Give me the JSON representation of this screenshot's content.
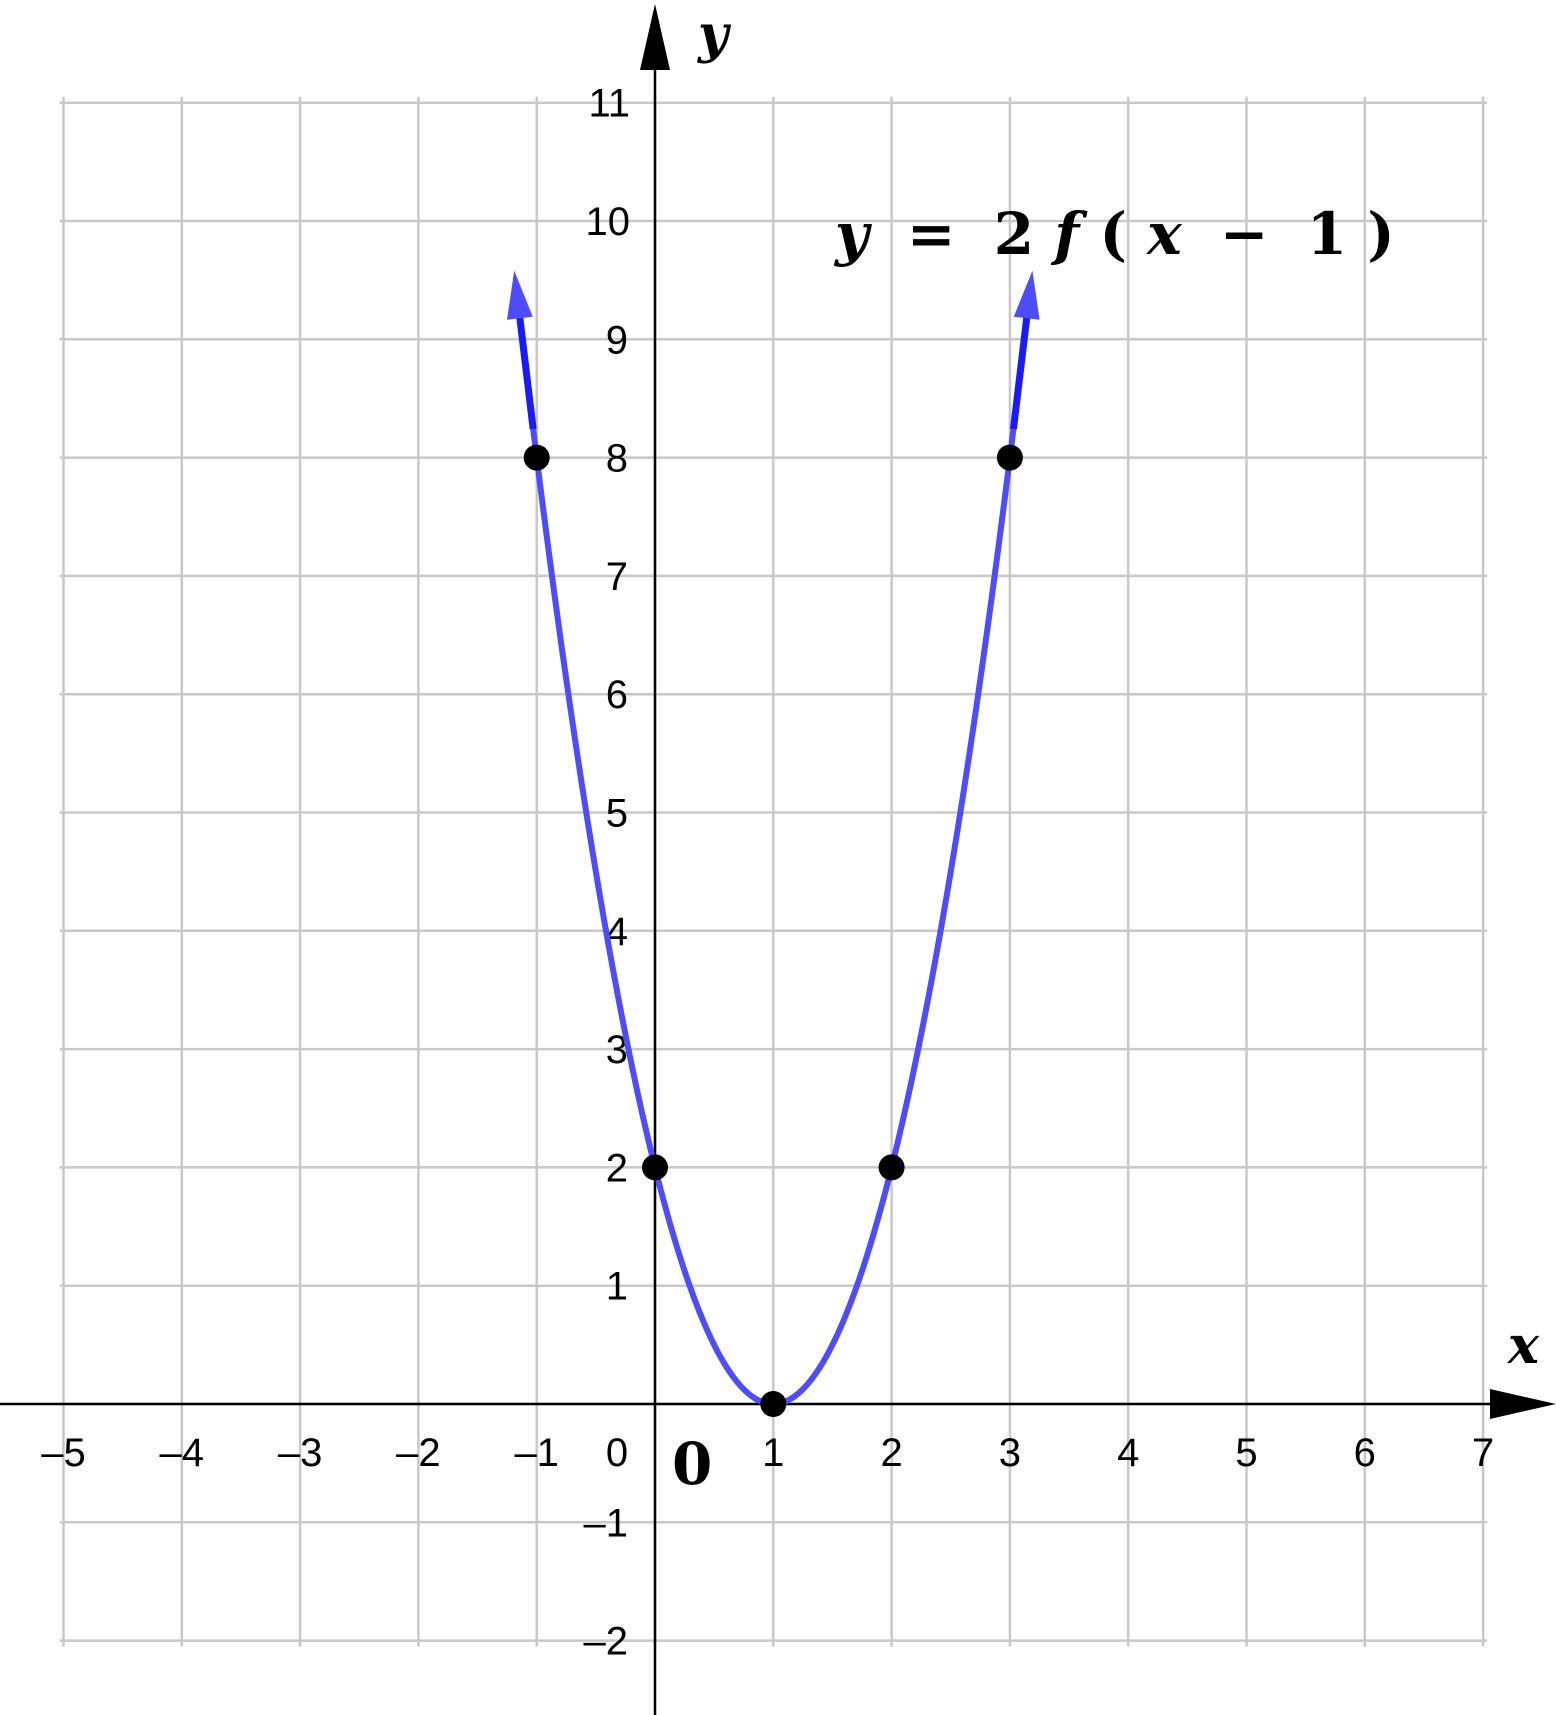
{
  "chart_data": {
    "type": "line",
    "title": "",
    "xlabel": "x",
    "ylabel": "y",
    "origin_label": "0",
    "equation": {
      "lhs": "y",
      "eq": "=",
      "coef": "2",
      "func": "f",
      "open": "(",
      "var": "x",
      "op": "−",
      "shift": "1",
      "close": ")"
    },
    "xlim": [
      -5,
      7
    ],
    "ylim": [
      -2,
      11
    ],
    "grid": true,
    "x_ticks": [
      "–5",
      "–4",
      "–3",
      "–2",
      "–1",
      "0",
      "1",
      "2",
      "3",
      "4",
      "5",
      "6",
      "7"
    ],
    "y_ticks": [
      "–2",
      "–1",
      "1",
      "2",
      "3",
      "4",
      "5",
      "6",
      "7",
      "8",
      "9",
      "10",
      "11"
    ],
    "curve_color": "#4d4dff",
    "arrow_color": "#1a1aff",
    "curve_x_range": [
      -1.15,
      3.15
    ],
    "series": [
      {
        "x": [
          -1,
          0,
          1,
          2,
          3
        ],
        "y": [
          8,
          2,
          0,
          2,
          8
        ]
      }
    ]
  }
}
